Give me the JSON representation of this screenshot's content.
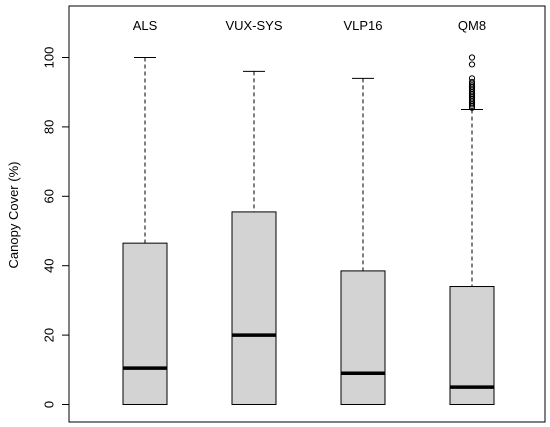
{
  "chart_data": {
    "type": "boxplot",
    "title": "",
    "xlabel": "",
    "ylabel": "Canopy Cover (%)",
    "ylim": [
      0,
      100
    ],
    "yticks": [
      0,
      20,
      40,
      60,
      80,
      100
    ],
    "category_labels_position": "top",
    "box_color": "#d3d3d3",
    "categories": [
      "ALS",
      "VUX-SYS",
      "VLP16",
      "QM8"
    ],
    "boxes": [
      {
        "name": "ALS",
        "min": 0,
        "q1": 0,
        "median": 10.5,
        "q3": 46.5,
        "max": 100,
        "outliers": []
      },
      {
        "name": "VUX-SYS",
        "min": 0,
        "q1": 0,
        "median": 20,
        "q3": 55.5,
        "max": 96,
        "outliers": []
      },
      {
        "name": "VLP16",
        "min": 0,
        "q1": 0,
        "median": 9,
        "q3": 38.5,
        "max": 94,
        "outliers": []
      },
      {
        "name": "QM8",
        "min": 0,
        "q1": 0,
        "median": 5,
        "q3": 34,
        "max": 85,
        "outliers": [
          85.5,
          86,
          86.5,
          87,
          87.5,
          88,
          88.5,
          89,
          89.5,
          90,
          90.5,
          91,
          91.5,
          92,
          92.5,
          93,
          94,
          98,
          100
        ]
      }
    ]
  }
}
